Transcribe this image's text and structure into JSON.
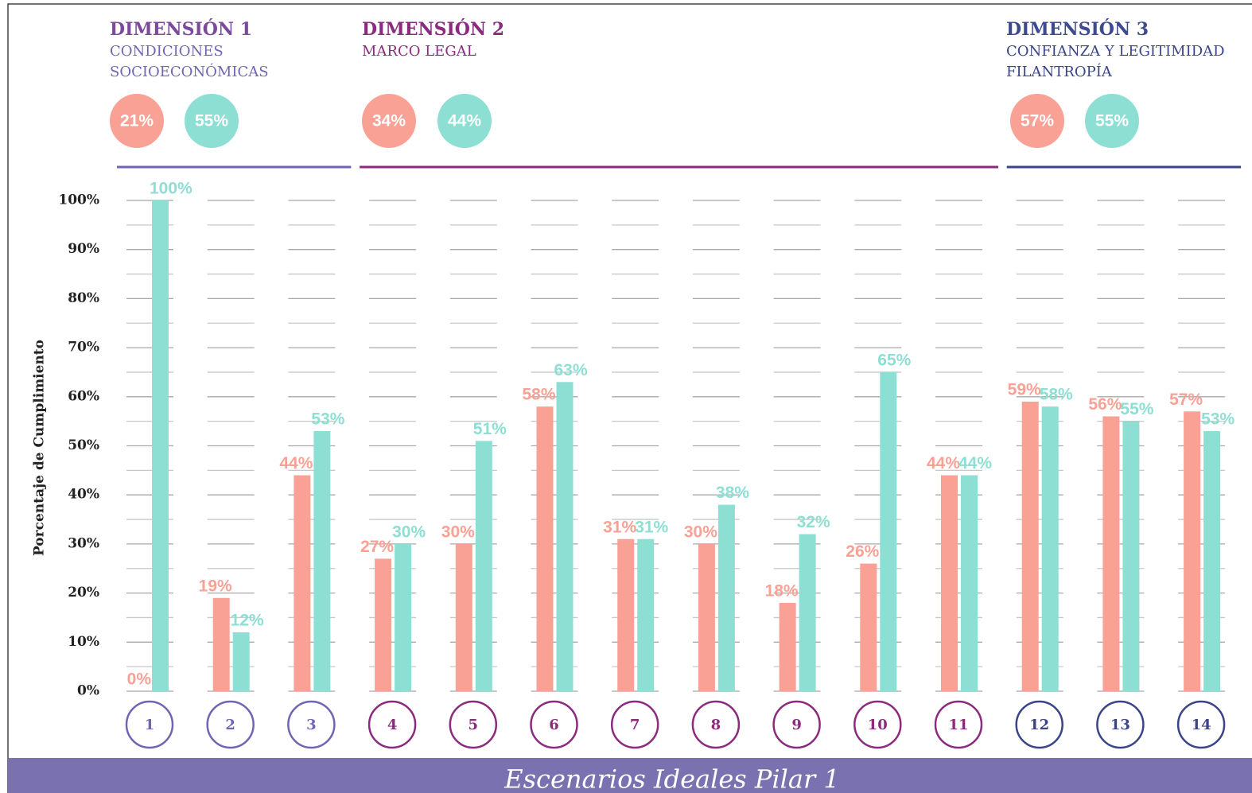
{
  "chart_data": {
    "type": "bar",
    "y_label": "Porcentaje de Cumplimiento",
    "footer": "Escenarios Ideales Pilar 1",
    "categories": [
      "1",
      "2",
      "3",
      "4",
      "5",
      "6",
      "7",
      "8",
      "9",
      "10",
      "11",
      "12",
      "13",
      "14"
    ],
    "series": [
      {
        "color": "#f9a195",
        "values": [
          0,
          19,
          44,
          27,
          30,
          58,
          31,
          30,
          18,
          26,
          44,
          59,
          56,
          57
        ],
        "value_labels": [
          "0%",
          "19%",
          "44%",
          "27%",
          "30%",
          "58%",
          "31%",
          "30%",
          "18%",
          "26%",
          "44%",
          "59%",
          "56%",
          "57%"
        ]
      },
      {
        "color": "#8ddfd4",
        "values": [
          100,
          12,
          53,
          30,
          51,
          63,
          31,
          38,
          32,
          65,
          44,
          58,
          55,
          53
        ],
        "value_labels": [
          "100%",
          "12%",
          "53%",
          "30%",
          "51%",
          "63%",
          "31%",
          "38%",
          "32%",
          "65%",
          "44%",
          "58%",
          "55%",
          "53%"
        ]
      }
    ],
    "ylim": [
      0,
      100
    ],
    "yticks": [
      {
        "value": 0,
        "label": "0%"
      },
      {
        "value": 10,
        "label": "10%"
      },
      {
        "value": 20,
        "label": "20%"
      },
      {
        "value": 30,
        "label": "30%"
      },
      {
        "value": 40,
        "label": "40%"
      },
      {
        "value": 50,
        "label": "50%"
      },
      {
        "value": 60,
        "label": "60%"
      },
      {
        "value": 70,
        "label": "70%"
      },
      {
        "value": 80,
        "label": "80%"
      },
      {
        "value": 90,
        "label": "90%"
      },
      {
        "value": 100,
        "label": "100%"
      }
    ],
    "minor_yticks": [
      5,
      15,
      25,
      35,
      45,
      55,
      65,
      75,
      85,
      95
    ],
    "grid": true,
    "dimensions": [
      {
        "title": "DIMENSIÓN 1",
        "subtitle": [
          "CONDICIONES",
          "SOCIOECONÓMICAS"
        ],
        "color": "#6e66b4",
        "values": [
          21,
          55
        ],
        "value_labels": [
          "21%",
          "55%"
        ]
      },
      {
        "title": "DIMENSIÓN 2",
        "subtitle": [
          "MARCO LEGAL"
        ],
        "color": "#8b2a7e",
        "values": [
          34,
          44
        ],
        "value_labels": [
          "34%",
          "44%"
        ]
      },
      {
        "title": "DIMENSIÓN 3",
        "subtitle": [
          "CONFIANZA Y LEGITIMIDAD",
          "FILANTROPÍA"
        ],
        "color": "#3b4389",
        "values": [
          57,
          55
        ],
        "value_labels": [
          "57%",
          "55%"
        ]
      }
    ]
  }
}
